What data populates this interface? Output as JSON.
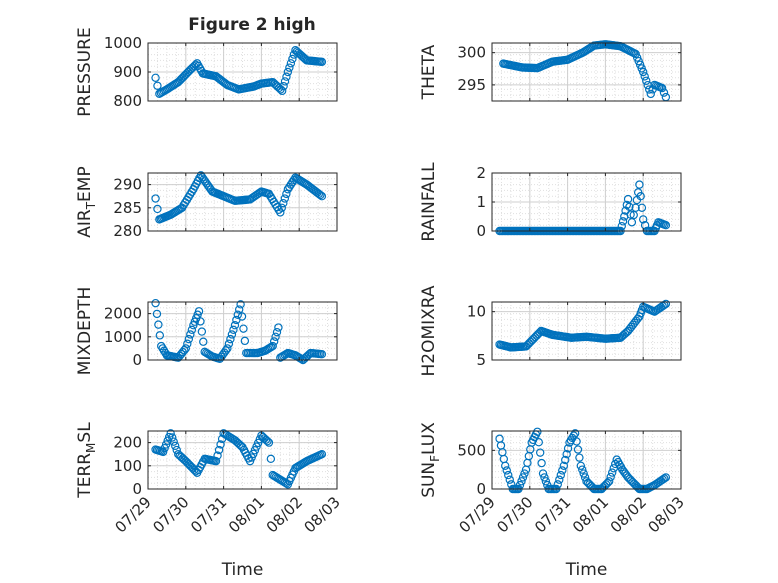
{
  "figure": {
    "title": "Figure 2 high"
  },
  "colors": {
    "marker": "#0072BD",
    "axis": "#262626",
    "grid": "#dfdfdf",
    "background": "#ffffff"
  },
  "chart_data": [
    {
      "type": "scatter",
      "ylabel": "PRESSURE",
      "ylabel_sub": null,
      "ylim": [
        800,
        1000
      ],
      "yticks": [
        800,
        900,
        1000
      ],
      "xlim": [
        0,
        5
      ],
      "xtick_labels": [
        "07/29",
        "07/30",
        "07/31",
        "08/01",
        "08/02",
        "08/03"
      ],
      "show_xtick_labels": false,
      "xlabel": "",
      "grid": true,
      "keypoints": [
        [
          0.2,
          880
        ],
        [
          0.3,
          825
        ],
        [
          0.5,
          840
        ],
        [
          0.8,
          865
        ],
        [
          1.1,
          905
        ],
        [
          1.3,
          930
        ],
        [
          1.45,
          895
        ],
        [
          1.8,
          885
        ],
        [
          2.1,
          855
        ],
        [
          2.4,
          840
        ],
        [
          2.8,
          850
        ],
        [
          3.0,
          860
        ],
        [
          3.3,
          865
        ],
        [
          3.55,
          835
        ],
        [
          3.7,
          900
        ],
        [
          3.9,
          975
        ],
        [
          4.2,
          940
        ],
        [
          4.6,
          935
        ]
      ]
    },
    {
      "type": "scatter",
      "ylabel": "THETA",
      "ylabel_sub": null,
      "ylim": [
        292.5,
        301.5
      ],
      "yticks": [
        295,
        300
      ],
      "xlim": [
        0,
        5
      ],
      "xtick_labels": [
        "07/29",
        "07/30",
        "07/31",
        "08/01",
        "08/02",
        "08/03"
      ],
      "show_xtick_labels": false,
      "xlabel": "",
      "grid": true,
      "keypoints": [
        [
          0.3,
          298.3
        ],
        [
          0.8,
          297.7
        ],
        [
          1.2,
          297.6
        ],
        [
          1.6,
          298.6
        ],
        [
          2.0,
          298.9
        ],
        [
          2.4,
          300.0
        ],
        [
          2.7,
          301.1
        ],
        [
          3.0,
          301.3
        ],
        [
          3.4,
          301.0
        ],
        [
          3.8,
          299.8
        ],
        [
          4.0,
          297.0
        ],
        [
          4.2,
          293.6
        ],
        [
          4.3,
          295.0
        ],
        [
          4.5,
          294.5
        ],
        [
          4.6,
          293.1
        ]
      ]
    },
    {
      "type": "scatter",
      "ylabel": "AIR",
      "ylabel_sub": "T",
      "ylabel_rest": "EMP",
      "ylim": [
        280,
        292.5
      ],
      "yticks": [
        280,
        285,
        290
      ],
      "xlim": [
        0,
        5
      ],
      "xtick_labels": [
        "07/29",
        "07/30",
        "07/31",
        "08/01",
        "08/02",
        "08/03"
      ],
      "show_xtick_labels": false,
      "xlabel": "",
      "grid": true,
      "keypoints": [
        [
          0.2,
          287
        ],
        [
          0.3,
          282.5
        ],
        [
          0.6,
          283.5
        ],
        [
          0.9,
          285
        ],
        [
          1.2,
          289
        ],
        [
          1.4,
          292
        ],
        [
          1.7,
          288.5
        ],
        [
          2.0,
          287.5
        ],
        [
          2.3,
          286.5
        ],
        [
          2.7,
          286.8
        ],
        [
          3.0,
          288.5
        ],
        [
          3.2,
          288
        ],
        [
          3.5,
          284
        ],
        [
          3.7,
          289
        ],
        [
          3.9,
          291.5
        ],
        [
          4.2,
          290
        ],
        [
          4.6,
          287.5
        ]
      ]
    },
    {
      "type": "scatter",
      "ylabel": "RAINFALL",
      "ylabel_sub": null,
      "ylim": [
        0,
        2
      ],
      "yticks": [
        0,
        1,
        2
      ],
      "xlim": [
        0,
        5
      ],
      "xtick_labels": [
        "07/29",
        "07/30",
        "07/31",
        "08/01",
        "08/02",
        "08/03"
      ],
      "show_xtick_labels": false,
      "xlabel": "",
      "grid": true,
      "keypoints": [
        [
          0.2,
          0
        ],
        [
          3.4,
          0
        ],
        [
          3.5,
          0.5
        ],
        [
          3.6,
          1.1
        ],
        [
          3.7,
          0.3
        ],
        [
          3.8,
          0.8
        ],
        [
          3.9,
          1.6
        ],
        [
          4.0,
          0.4
        ],
        [
          4.1,
          0
        ],
        [
          4.3,
          0
        ],
        [
          4.4,
          0.3
        ],
        [
          4.6,
          0.2
        ]
      ]
    },
    {
      "type": "scatter",
      "ylabel": "MIXDEPTH",
      "ylabel_sub": null,
      "ylim": [
        0,
        2500
      ],
      "yticks": [
        0,
        1000,
        2000
      ],
      "xlim": [
        0,
        5
      ],
      "xtick_labels": [
        "07/29",
        "07/30",
        "07/31",
        "08/01",
        "08/02",
        "08/03"
      ],
      "show_xtick_labels": false,
      "xlabel": "",
      "grid": true,
      "keypoints": [
        [
          0.2,
          2450
        ],
        [
          0.35,
          600
        ],
        [
          0.5,
          200
        ],
        [
          0.8,
          100
        ],
        [
          1.0,
          500
        ],
        [
          1.2,
          1500
        ],
        [
          1.35,
          2100
        ],
        [
          1.5,
          350
        ],
        [
          1.7,
          150
        ],
        [
          1.9,
          50
        ],
        [
          2.1,
          500
        ],
        [
          2.3,
          1500
        ],
        [
          2.45,
          2400
        ],
        [
          2.6,
          300
        ],
        [
          2.9,
          300
        ],
        [
          3.1,
          400
        ],
        [
          3.3,
          600
        ],
        [
          3.45,
          1400
        ],
        [
          3.5,
          100
        ],
        [
          3.7,
          300
        ],
        [
          3.9,
          200
        ],
        [
          4.1,
          0
        ],
        [
          4.3,
          300
        ],
        [
          4.6,
          250
        ]
      ]
    },
    {
      "type": "scatter",
      "ylabel": "H2OMIXRA",
      "ylabel_sub": null,
      "ylim": [
        5,
        11
      ],
      "yticks": [
        5,
        10
      ],
      "xlim": [
        0,
        5
      ],
      "xtick_labels": [
        "07/29",
        "07/30",
        "07/31",
        "08/01",
        "08/02",
        "08/03"
      ],
      "show_xtick_labels": false,
      "xlabel": "",
      "grid": true,
      "keypoints": [
        [
          0.2,
          6.6
        ],
        [
          0.5,
          6.3
        ],
        [
          0.9,
          6.4
        ],
        [
          1.1,
          7.2
        ],
        [
          1.3,
          8.0
        ],
        [
          1.6,
          7.6
        ],
        [
          2.1,
          7.3
        ],
        [
          2.5,
          7.4
        ],
        [
          3.0,
          7.2
        ],
        [
          3.4,
          7.3
        ],
        [
          3.6,
          8.0
        ],
        [
          3.9,
          9.5
        ],
        [
          4.0,
          10.5
        ],
        [
          4.3,
          10.0
        ],
        [
          4.6,
          10.8
        ]
      ]
    },
    {
      "type": "scatter",
      "ylabel": "TERR",
      "ylabel_sub": "M",
      "ylabel_rest": "SL",
      "ylim": [
        0,
        250
      ],
      "yticks": [
        0,
        100,
        200
      ],
      "xlim": [
        0,
        5
      ],
      "xtick_labels": [
        "07/29",
        "07/30",
        "07/31",
        "08/01",
        "08/02",
        "08/03"
      ],
      "show_xtick_labels": true,
      "xlabel": "Time",
      "grid": true,
      "keypoints": [
        [
          0.2,
          170
        ],
        [
          0.4,
          160
        ],
        [
          0.6,
          240
        ],
        [
          0.8,
          150
        ],
        [
          1.0,
          120
        ],
        [
          1.3,
          70
        ],
        [
          1.5,
          130
        ],
        [
          1.8,
          120
        ],
        [
          2.0,
          240
        ],
        [
          2.3,
          210
        ],
        [
          2.5,
          180
        ],
        [
          2.7,
          120
        ],
        [
          3.0,
          230
        ],
        [
          3.2,
          200
        ],
        [
          3.3,
          60
        ],
        [
          3.5,
          40
        ],
        [
          3.7,
          20
        ],
        [
          3.9,
          90
        ],
        [
          4.2,
          120
        ],
        [
          4.6,
          150
        ]
      ]
    },
    {
      "type": "scatter",
      "ylabel": "SUN",
      "ylabel_sub": "F",
      "ylabel_rest": "LUX",
      "ylim": [
        0,
        750
      ],
      "yticks": [
        0,
        500
      ],
      "xlim": [
        0,
        5
      ],
      "xtick_labels": [
        "07/29",
        "07/30",
        "07/31",
        "08/01",
        "08/02",
        "08/03"
      ],
      "show_xtick_labels": true,
      "xlabel": "Time",
      "grid": true,
      "keypoints": [
        [
          0.2,
          650
        ],
        [
          0.35,
          300
        ],
        [
          0.55,
          0
        ],
        [
          0.7,
          0
        ],
        [
          0.9,
          250
        ],
        [
          1.05,
          600
        ],
        [
          1.2,
          740
        ],
        [
          1.35,
          200
        ],
        [
          1.5,
          0
        ],
        [
          1.7,
          0
        ],
        [
          1.9,
          300
        ],
        [
          2.05,
          600
        ],
        [
          2.2,
          720
        ],
        [
          2.35,
          300
        ],
        [
          2.5,
          100
        ],
        [
          2.7,
          0
        ],
        [
          2.9,
          0
        ],
        [
          3.1,
          100
        ],
        [
          3.3,
          380
        ],
        [
          3.45,
          250
        ],
        [
          3.6,
          150
        ],
        [
          3.8,
          50
        ],
        [
          3.9,
          0
        ],
        [
          4.1,
          0
        ],
        [
          4.3,
          50
        ],
        [
          4.6,
          150
        ]
      ]
    }
  ]
}
